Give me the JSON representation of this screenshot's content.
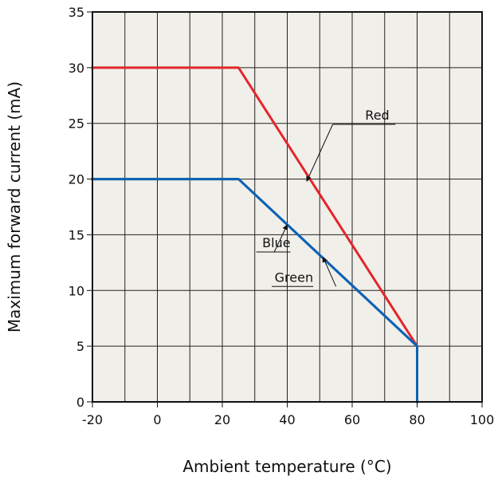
{
  "chart_data": {
    "type": "line",
    "title": "",
    "xlabel": "Ambient temperature (°C)",
    "ylabel": "Maximum forward current (mA)",
    "xlim": [
      -20,
      100
    ],
    "ylim": [
      0,
      35
    ],
    "x_ticks": [
      -20,
      0,
      20,
      40,
      60,
      80,
      100
    ],
    "y_ticks": [
      0,
      5,
      10,
      15,
      20,
      25,
      30,
      35
    ],
    "minor_x_step": 10,
    "grid": true,
    "background_color": "#f1efe9",
    "series": [
      {
        "name": "Red",
        "color": "#e3262b",
        "points": [
          [
            -20,
            30
          ],
          [
            25,
            30
          ],
          [
            80,
            5
          ]
        ]
      },
      {
        "name": "Blue",
        "color": "#0d63b4",
        "points": [
          [
            -20,
            20
          ],
          [
            25,
            20
          ],
          [
            80,
            5
          ],
          [
            80,
            0
          ]
        ]
      },
      {
        "name": "Green",
        "color": "#0d63b4",
        "points": [
          [
            -20,
            20
          ],
          [
            25,
            20
          ],
          [
            80,
            5
          ],
          [
            80,
            0
          ]
        ]
      }
    ],
    "annotations": [
      {
        "text": "Red",
        "label_anchor": [
          64,
          25.05
        ],
        "line_knee": [
          54,
          25.05
        ],
        "arrow_tip": [
          46,
          19.8
        ]
      },
      {
        "text": "Blue",
        "label_anchor": [
          41,
          13.6
        ],
        "line_knee": [
          36,
          13.6
        ],
        "arrow_tip": [
          40,
          15.9
        ]
      },
      {
        "text": "Green",
        "label_anchor": [
          48,
          10.5
        ],
        "line_knee": [
          55,
          10.5
        ],
        "arrow_tip": [
          51,
          13.0
        ]
      }
    ]
  }
}
